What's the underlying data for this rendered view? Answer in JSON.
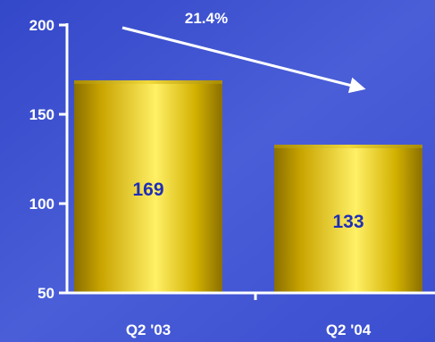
{
  "chart_data": {
    "type": "bar",
    "categories": [
      "Q2 '03",
      "Q2 '04"
    ],
    "values": [
      169,
      133
    ],
    "value_labels": [
      "169",
      "133"
    ],
    "ylim": [
      50,
      200
    ],
    "y_ticks": [
      {
        "value": 50,
        "label": "50"
      },
      {
        "value": 100,
        "label": "100"
      },
      {
        "value": 150,
        "label": "150"
      },
      {
        "value": 200,
        "label": "200"
      }
    ],
    "annotation": "21.4%",
    "grid": false,
    "legend": "none",
    "colors": {
      "background": "#3b4fd0",
      "bar": "#c9a400",
      "bar_highlight": "#ffe85a",
      "value_label": "#1f2fb5",
      "axis": "#ffffff",
      "text": "#ffffff"
    }
  }
}
